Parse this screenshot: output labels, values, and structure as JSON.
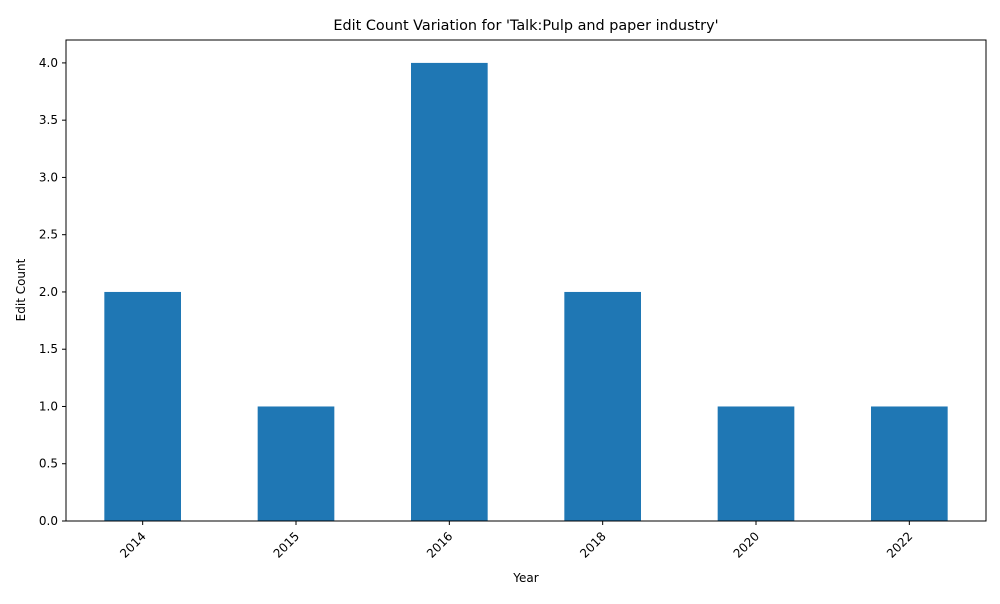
{
  "chart_data": {
    "type": "bar",
    "title": "Edit Count Variation for 'Talk:Pulp and paper industry'",
    "xlabel": "Year",
    "ylabel": "Edit Count",
    "categories": [
      "2014",
      "2015",
      "2016",
      "2018",
      "2020",
      "2022"
    ],
    "values": [
      2,
      1,
      4,
      2,
      1,
      1
    ],
    "ylim": [
      0,
      4.2
    ],
    "yticks": [
      0.0,
      0.5,
      1.0,
      1.5,
      2.0,
      2.5,
      3.0,
      3.5,
      4.0
    ],
    "ytick_labels": [
      "0.0",
      "0.5",
      "1.0",
      "1.5",
      "2.0",
      "2.5",
      "3.0",
      "3.5",
      "4.0"
    ],
    "bar_color": "#1f77b4",
    "grid": false,
    "legend": "none",
    "xtick_rotation_deg": 45
  }
}
